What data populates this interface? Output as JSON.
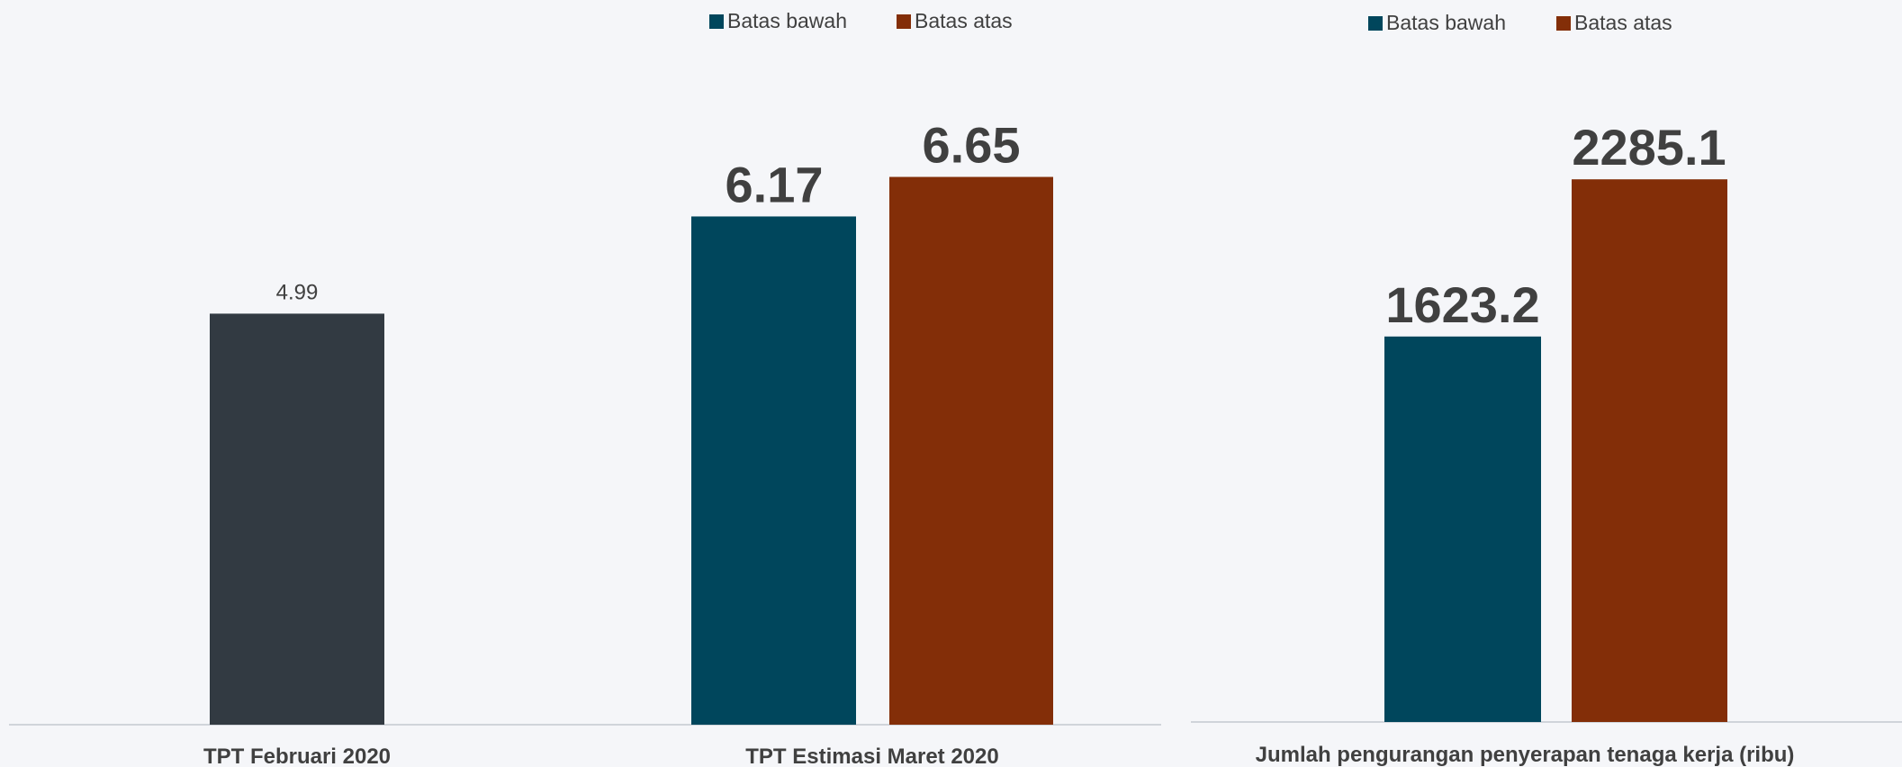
{
  "colors": {
    "background": "#f5f6f9",
    "dark": "#323a42",
    "lower": "#00465c",
    "upper": "#832e08",
    "axis": "#d0d4da",
    "text": "#404040"
  },
  "chart_data": [
    {
      "type": "bar",
      "series": [
        {
          "name": "",
          "values": [
            4.99
          ]
        }
      ],
      "categories": [
        "TPT Februari 2020"
      ],
      "legend": null
    },
    {
      "type": "bar",
      "categories": [
        "TPT Estimasi Maret 2020"
      ],
      "series": [
        {
          "name": "Batas bawah",
          "values": [
            6.17
          ]
        },
        {
          "name": "Batas atas",
          "values": [
            6.65
          ]
        }
      ],
      "legend": "top"
    },
    {
      "type": "bar",
      "categories": [
        "Jumlah pengurangan penyerapan tenaga kerja (ribu)"
      ],
      "series": [
        {
          "name": "Batas bawah",
          "values": [
            1623.2
          ]
        },
        {
          "name": "Batas atas",
          "values": [
            2285.1
          ]
        }
      ],
      "legend": "top"
    }
  ]
}
